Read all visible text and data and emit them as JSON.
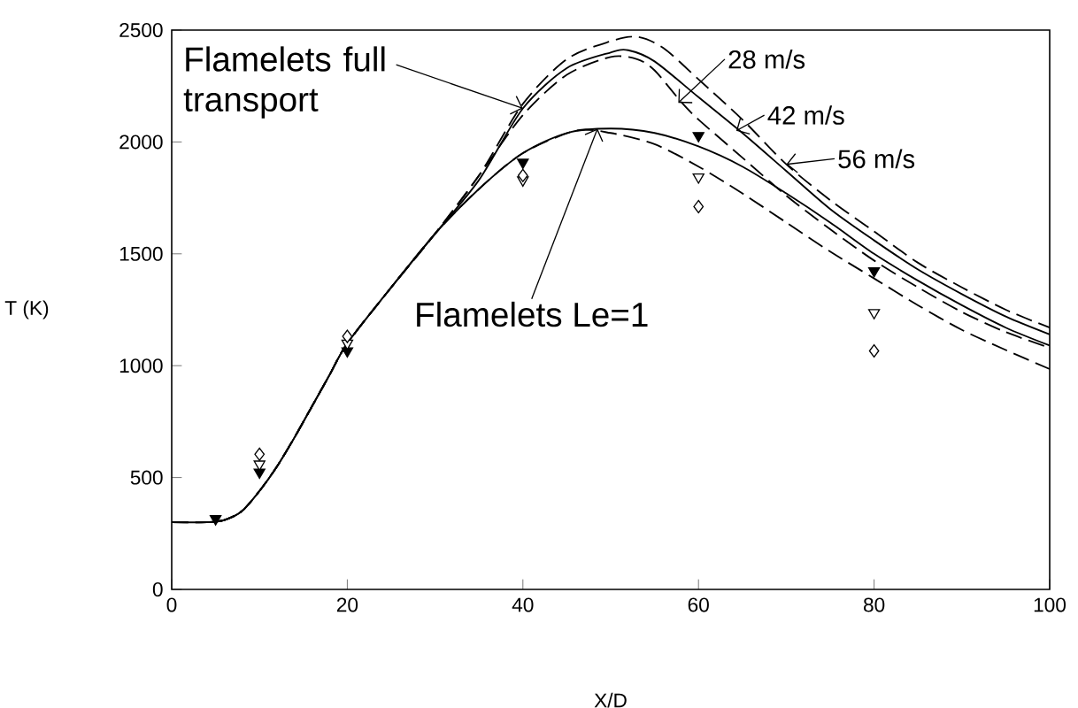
{
  "chart_data": {
    "type": "line",
    "xlabel": "X/D",
    "ylabel": "T (K)",
    "xlim": [
      0,
      100
    ],
    "ylim": [
      0,
      2500
    ],
    "xticks": [
      0,
      20,
      40,
      60,
      80,
      100
    ],
    "yticks": [
      0,
      500,
      1000,
      1500,
      2000,
      2500
    ],
    "grid": false,
    "series": [
      {
        "color": "#000000",
        "line_style": "dashed",
        "x": [
          0,
          4,
          6,
          8,
          10,
          12,
          14,
          16,
          18,
          20,
          25,
          30,
          35,
          40,
          45,
          50,
          53,
          55,
          58,
          60,
          65,
          70,
          75,
          80,
          85,
          90,
          95,
          100
        ],
        "values": [
          300,
          300,
          310,
          350,
          440,
          550,
          680,
          820,
          960,
          1100,
          1350,
          1590,
          1850,
          2120,
          2300,
          2380,
          2370,
          2320,
          2180,
          2100,
          1930,
          1760,
          1610,
          1470,
          1350,
          1240,
          1150,
          1080
        ]
      },
      {
        "color": "#000000",
        "line_style": "solid",
        "x": [
          0,
          4,
          6,
          8,
          10,
          12,
          14,
          16,
          18,
          20,
          25,
          30,
          35,
          40,
          45,
          50,
          52,
          55,
          60,
          65,
          70,
          75,
          80,
          85,
          90,
          95,
          100
        ],
        "values": [
          300,
          300,
          310,
          350,
          440,
          550,
          680,
          820,
          960,
          1100,
          1350,
          1590,
          1830,
          2150,
          2330,
          2400,
          2410,
          2360,
          2200,
          2040,
          1870,
          1700,
          1560,
          1430,
          1320,
          1220,
          1140
        ]
      },
      {
        "color": "#000000",
        "line_style": "dashed",
        "x": [
          0,
          4,
          6,
          8,
          10,
          12,
          14,
          16,
          18,
          20,
          25,
          30,
          35,
          40,
          45,
          50,
          53,
          56,
          60,
          65,
          70,
          75,
          80,
          85,
          90,
          95,
          100
        ],
        "values": [
          300,
          300,
          310,
          350,
          440,
          550,
          680,
          820,
          960,
          1100,
          1350,
          1590,
          1850,
          2170,
          2370,
          2450,
          2470,
          2420,
          2280,
          2100,
          1900,
          1740,
          1600,
          1460,
          1350,
          1250,
          1170
        ]
      },
      {
        "color": "#000000",
        "line_style": "dashed",
        "x": [
          0,
          4,
          6,
          8,
          10,
          12,
          14,
          16,
          18,
          20,
          25,
          30,
          35,
          40,
          46,
          50,
          55,
          60,
          65,
          70,
          75,
          80,
          85,
          90,
          95,
          100
        ],
        "values": [
          300,
          300,
          310,
          350,
          440,
          550,
          680,
          820,
          960,
          1100,
          1350,
          1590,
          1790,
          1950,
          2050,
          2040,
          1990,
          1890,
          1770,
          1640,
          1510,
          1390,
          1270,
          1160,
          1070,
          985
        ]
      },
      {
        "color": "#000000",
        "line_style": "solid",
        "x": [
          0,
          4,
          6,
          8,
          10,
          12,
          14,
          16,
          18,
          20,
          25,
          30,
          35,
          40,
          45,
          50,
          55,
          60,
          65,
          70,
          75,
          80,
          85,
          90,
          95,
          100
        ],
        "values": [
          300,
          300,
          310,
          350,
          440,
          550,
          680,
          820,
          960,
          1100,
          1350,
          1590,
          1790,
          1950,
          2040,
          2060,
          2040,
          1980,
          1890,
          1770,
          1640,
          1500,
          1380,
          1270,
          1170,
          1090
        ]
      },
      {
        "type": "scatter",
        "color": "#000000",
        "marker": "triangle",
        "x": [
          5,
          10,
          20,
          40,
          60,
          80
        ],
        "values": [
          316,
          524,
          1066,
          1909,
          2028,
          1424
        ]
      },
      {
        "type": "scatter",
        "color": "#ffffff",
        "marker": "triangle",
        "x": [
          10,
          20,
          40,
          60,
          80
        ],
        "values": [
          560,
          1100,
          1830,
          1843,
          1237
        ]
      },
      {
        "type": "scatter",
        "color": "#ffffff",
        "marker": "diamond",
        "x": [
          10,
          20,
          40,
          60,
          80
        ],
        "values": [
          604,
          1131,
          1850,
          1711,
          1066
        ]
      }
    ],
    "annotations": [
      {
        "text": "Flamelets full transport",
        "x": 40,
        "y": 2150
      },
      {
        "text": "Flamelets Le=1",
        "x": 48.5,
        "y": 2060
      },
      {
        "text": "28 m/s",
        "x": 57.7,
        "y": 2175
      },
      {
        "text": "42 m/s",
        "x": 64.3,
        "y": 2050
      },
      {
        "text": "56 m/s",
        "x": 70,
        "y": 1900
      }
    ]
  }
}
